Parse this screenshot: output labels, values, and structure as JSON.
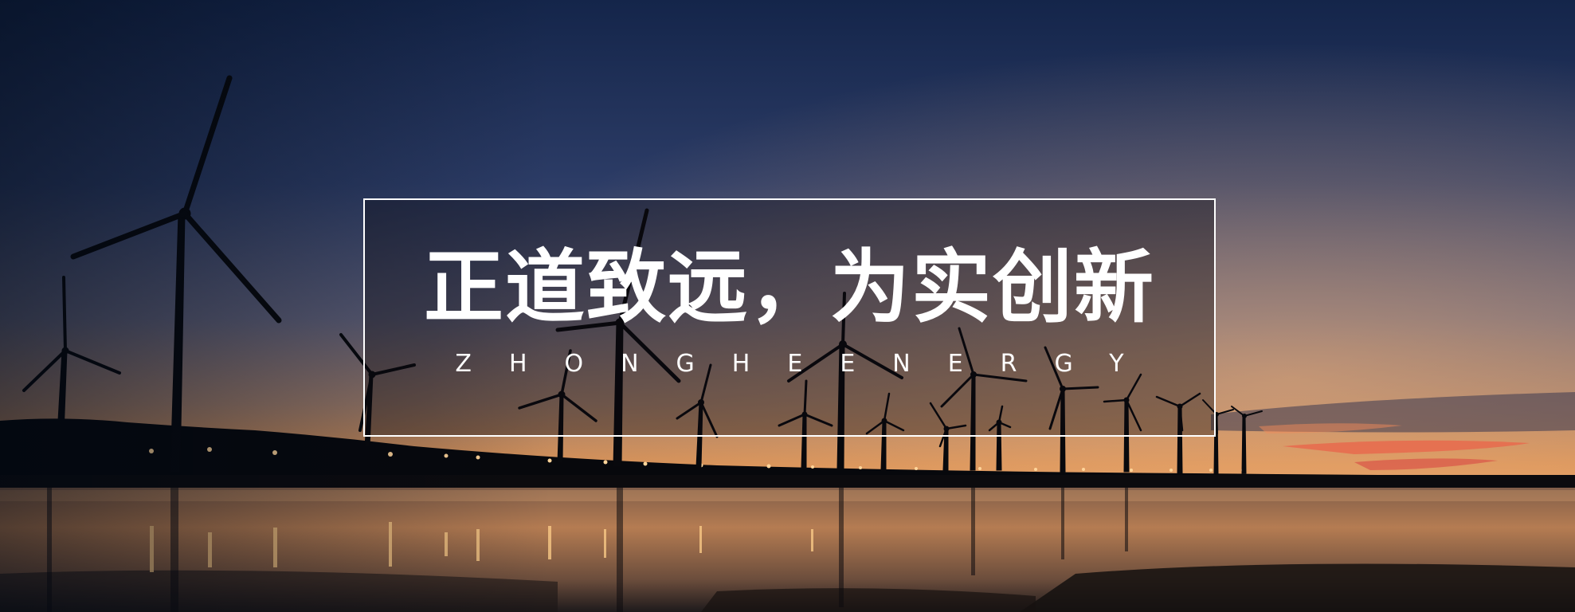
{
  "banner": {
    "headline": "正道致远，为实创新",
    "subtitle": "ZHONGHEENERGY"
  },
  "scene": {
    "description_icon": "wind-turbine-icon",
    "colors": {
      "sky_top": "#1c2d52",
      "sky_mid": "#44506e",
      "horizon_glow": "#e39a58",
      "water_reflection": "#c8874c",
      "silhouette": "#0a0b10",
      "box_border": "#ffffff"
    }
  }
}
